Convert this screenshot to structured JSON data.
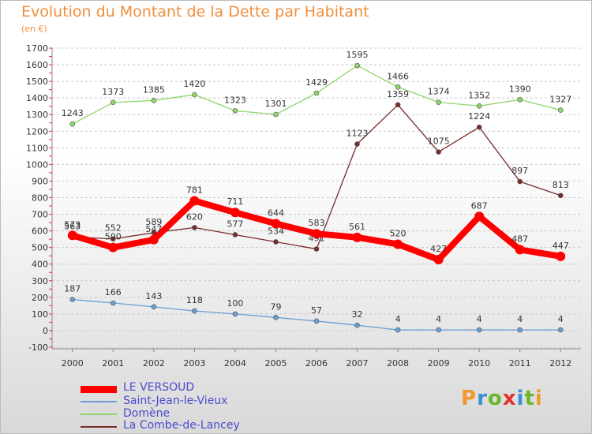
{
  "title": "Evolution du Montant de la Dette par Habitant",
  "subtitle": "(en €)",
  "logo": {
    "text": "Proxiti",
    "colors": [
      "#f1982c",
      "#3a8fd6",
      "#6cb52b",
      "#e0312b",
      "#3a8fd6",
      "#6cb52b",
      "#f1982c"
    ]
  },
  "chart_data": {
    "type": "line",
    "title": "Evolution du Montant de la Dette par Habitant",
    "subtitle": "(en €)",
    "xlabel": "",
    "ylabel": "",
    "x": [
      "2000",
      "2001",
      "2002",
      "2003",
      "2004",
      "2005",
      "2006",
      "2007",
      "2008",
      "2009",
      "2010",
      "2011",
      "2012"
    ],
    "ylim": [
      -100,
      1700
    ],
    "yticks": [
      -100,
      0,
      100,
      200,
      300,
      400,
      500,
      600,
      700,
      800,
      900,
      1000,
      1100,
      1200,
      1300,
      1400,
      1500,
      1600,
      1700
    ],
    "grid": "horizontal dashed",
    "legend_position": "bottom-left",
    "series": [
      {
        "name": "LE VERSOUD",
        "color": "#ff0000",
        "emphasis": true,
        "values": [
          573,
          500,
          547,
          781,
          711,
          644,
          583,
          561,
          520,
          427,
          687,
          487,
          447
        ],
        "labels": [
          "573",
          "500",
          "547",
          "781",
          "711",
          "644",
          "583",
          "561",
          "520",
          "427",
          "687",
          "487",
          "447"
        ]
      },
      {
        "name": "Saint-Jean-le-Vieux",
        "color": "#6a9ed3",
        "emphasis": false,
        "values": [
          187,
          166,
          143,
          118,
          100,
          79,
          57,
          32,
          4,
          4,
          4,
          4,
          4
        ],
        "labels": [
          "187",
          "166",
          "143",
          "118",
          "100",
          "79",
          "57",
          "32",
          "4",
          "4",
          "4",
          "4",
          "4"
        ]
      },
      {
        "name": "Domène",
        "color": "#8fd46a",
        "emphasis": false,
        "values": [
          1243,
          1373,
          1385,
          1420,
          1323,
          1301,
          1429,
          1595,
          1466,
          1374,
          1352,
          1390,
          1327
        ],
        "labels": [
          "1243",
          "1373",
          "1385",
          "1420",
          "1323",
          "1301",
          "1429",
          "1595",
          "1466",
          "1374",
          "1352",
          "1390",
          "1327"
        ]
      },
      {
        "name": "La Combe-de-Lancey",
        "color": "#7a2b2b",
        "emphasis": false,
        "values": [
          563,
          552,
          589,
          620,
          577,
          534,
          491,
          1123,
          1359,
          1075,
          1224,
          897,
          813
        ],
        "labels": [
          "563",
          "552",
          "589",
          "620",
          "577",
          "534",
          "491",
          "1123",
          "1359",
          "1075",
          "1224",
          "897",
          "813"
        ]
      }
    ]
  }
}
